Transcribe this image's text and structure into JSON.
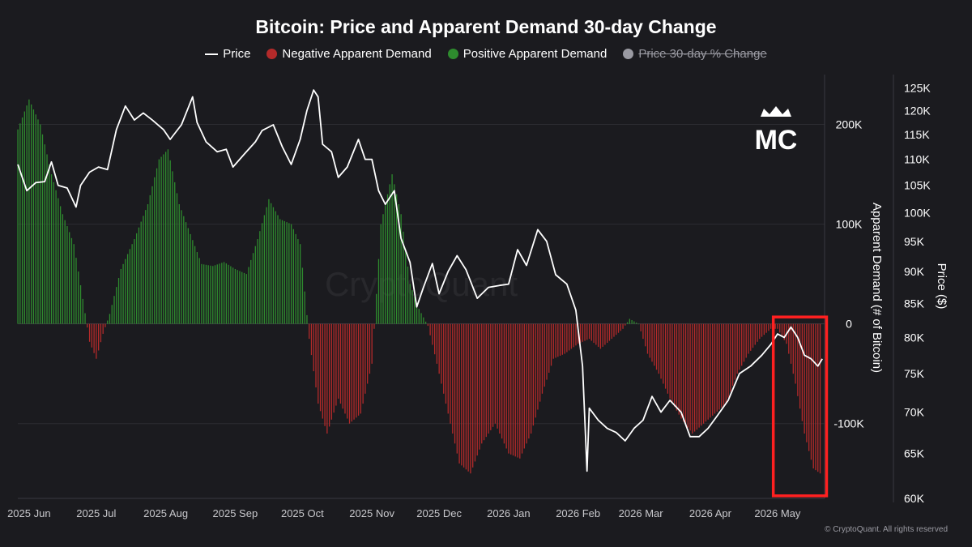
{
  "chart_data": {
    "type": "bar",
    "title": "Bitcoin: Price and Apparent Demand 30-day Change",
    "legend": [
      {
        "label": "Price",
        "kind": "line",
        "color": "#ffffff"
      },
      {
        "label": "Negative Apparent Demand",
        "kind": "dot",
        "color": "#b32a2a"
      },
      {
        "label": "Positive Apparent Demand",
        "kind": "dot",
        "color": "#2e8b2e"
      },
      {
        "label": "Price 30-day % Change",
        "kind": "dot",
        "color": "#9a9aa2",
        "hidden": true
      }
    ],
    "legend_position": "top-center",
    "watermark": "CryptoQuant",
    "x_tick_labels": [
      "2025 Jun",
      "2025 Jul",
      "2025 Aug",
      "2025 Sep",
      "2025 Oct",
      "2025 Nov",
      "2025 Dec",
      "2026 Jan",
      "2026 Feb",
      "2026 Mar",
      "2026 Apr",
      "2026 May"
    ],
    "x_range": [
      "2025-05-27",
      "2026-05-22"
    ],
    "left_axis": {
      "label": "Apparent Demand (# of Bitcoin)",
      "tick_labels": [
        "200K",
        "100K",
        "0",
        "-100K"
      ],
      "tick_values": [
        200000,
        100000,
        0,
        -100000
      ],
      "range": [
        -175000,
        250000
      ]
    },
    "right_axis": {
      "label": "Price ($)",
      "scale": "log",
      "tick_labels": [
        "125K",
        "120K",
        "115K",
        "110K",
        "105K",
        "100K",
        "95K",
        "90K",
        "85K",
        "80K",
        "75K",
        "70K",
        "65K",
        "60K"
      ],
      "tick_values": [
        125000,
        120000,
        115000,
        110000,
        105000,
        100000,
        95000,
        90000,
        85000,
        80000,
        75000,
        70000,
        65000,
        60000
      ],
      "range": [
        60000,
        128000
      ]
    },
    "grid": "horizontal",
    "series": [
      {
        "name": "Apparent Demand",
        "type": "bar",
        "positive_color": "#2e8b2e",
        "negative_color": "#b32a2a",
        "points": [
          [
            "2025-05-27",
            195000
          ],
          [
            "2025-06-01",
            225000
          ],
          [
            "2025-06-06",
            200000
          ],
          [
            "2025-06-11",
            150000
          ],
          [
            "2025-06-16",
            110000
          ],
          [
            "2025-06-21",
            80000
          ],
          [
            "2025-06-25",
            25000
          ],
          [
            "2025-06-28",
            -18000
          ],
          [
            "2025-07-01",
            -35000
          ],
          [
            "2025-07-04",
            -10000
          ],
          [
            "2025-07-07",
            10000
          ],
          [
            "2025-07-12",
            55000
          ],
          [
            "2025-07-18",
            85000
          ],
          [
            "2025-07-24",
            120000
          ],
          [
            "2025-07-29",
            165000
          ],
          [
            "2025-08-02",
            175000
          ],
          [
            "2025-08-07",
            120000
          ],
          [
            "2025-08-12",
            90000
          ],
          [
            "2025-08-17",
            60000
          ],
          [
            "2025-08-22",
            58000
          ],
          [
            "2025-08-27",
            62000
          ],
          [
            "2025-09-01",
            55000
          ],
          [
            "2025-09-06",
            50000
          ],
          [
            "2025-09-11",
            85000
          ],
          [
            "2025-09-16",
            125000
          ],
          [
            "2025-09-21",
            105000
          ],
          [
            "2025-09-26",
            100000
          ],
          [
            "2025-09-30",
            80000
          ],
          [
            "2025-10-04",
            -15000
          ],
          [
            "2025-10-08",
            -80000
          ],
          [
            "2025-10-12",
            -110000
          ],
          [
            "2025-10-17",
            -75000
          ],
          [
            "2025-10-22",
            -100000
          ],
          [
            "2025-10-27",
            -90000
          ],
          [
            "2025-11-01",
            -40000
          ],
          [
            "2025-11-05",
            100000
          ],
          [
            "2025-11-10",
            150000
          ],
          [
            "2025-11-14",
            110000
          ],
          [
            "2025-11-18",
            40000
          ],
          [
            "2025-11-22",
            15000
          ],
          [
            "2025-11-26",
            -2000
          ],
          [
            "2025-11-30",
            -40000
          ],
          [
            "2025-12-05",
            -90000
          ],
          [
            "2025-12-10",
            -140000
          ],
          [
            "2025-12-15",
            -150000
          ],
          [
            "2025-12-20",
            -120000
          ],
          [
            "2025-12-26",
            -100000
          ],
          [
            "2026-01-01",
            -130000
          ],
          [
            "2026-01-06",
            -135000
          ],
          [
            "2026-01-11",
            -110000
          ],
          [
            "2026-01-16",
            -70000
          ],
          [
            "2026-01-21",
            -35000
          ],
          [
            "2026-01-26",
            -30000
          ],
          [
            "2026-02-01",
            -20000
          ],
          [
            "2026-02-06",
            -15000
          ],
          [
            "2026-02-11",
            -25000
          ],
          [
            "2026-02-16",
            -15000
          ],
          [
            "2026-02-21",
            -5000
          ],
          [
            "2026-02-24",
            5000
          ],
          [
            "2026-02-28",
            0
          ],
          [
            "2026-03-04",
            -30000
          ],
          [
            "2026-03-09",
            -50000
          ],
          [
            "2026-03-14",
            -75000
          ],
          [
            "2026-03-19",
            -95000
          ],
          [
            "2026-03-24",
            -110000
          ],
          [
            "2026-03-29",
            -100000
          ],
          [
            "2026-04-03",
            -90000
          ],
          [
            "2026-04-08",
            -80000
          ],
          [
            "2026-04-13",
            -50000
          ],
          [
            "2026-04-18",
            -30000
          ],
          [
            "2026-04-23",
            -15000
          ],
          [
            "2026-04-28",
            -5000
          ],
          [
            "2026-05-01",
            -5000
          ],
          [
            "2026-05-05",
            -20000
          ],
          [
            "2026-05-09",
            -60000
          ],
          [
            "2026-05-13",
            -110000
          ],
          [
            "2026-05-17",
            -145000
          ],
          [
            "2026-05-20",
            -150000
          ]
        ]
      },
      {
        "name": "Price",
        "type": "line",
        "color": "#ffffff",
        "points": [
          [
            "2025-05-27",
            109000
          ],
          [
            "2025-05-31",
            104000
          ],
          [
            "2025-06-04",
            105500
          ],
          [
            "2025-06-08",
            105700
          ],
          [
            "2025-06-11",
            109500
          ],
          [
            "2025-06-14",
            105000
          ],
          [
            "2025-06-18",
            104500
          ],
          [
            "2025-06-22",
            101000
          ],
          [
            "2025-06-24",
            105000
          ],
          [
            "2025-06-28",
            107500
          ],
          [
            "2025-07-02",
            108500
          ],
          [
            "2025-07-06",
            108000
          ],
          [
            "2025-07-10",
            116000
          ],
          [
            "2025-07-14",
            121000
          ],
          [
            "2025-07-18",
            118000
          ],
          [
            "2025-07-22",
            119500
          ],
          [
            "2025-07-26",
            118000
          ],
          [
            "2025-07-31",
            116000
          ],
          [
            "2025-08-03",
            114000
          ],
          [
            "2025-08-08",
            117000
          ],
          [
            "2025-08-13",
            123000
          ],
          [
            "2025-08-15",
            117500
          ],
          [
            "2025-08-19",
            113500
          ],
          [
            "2025-08-24",
            111500
          ],
          [
            "2025-08-28",
            112000
          ],
          [
            "2025-08-31",
            108500
          ],
          [
            "2025-09-05",
            111000
          ],
          [
            "2025-09-10",
            113500
          ],
          [
            "2025-09-13",
            115800
          ],
          [
            "2025-09-18",
            117000
          ],
          [
            "2025-09-22",
            112500
          ],
          [
            "2025-09-26",
            109000
          ],
          [
            "2025-09-30",
            114000
          ],
          [
            "2025-10-03",
            120000
          ],
          [
            "2025-10-06",
            124500
          ],
          [
            "2025-10-08",
            123000
          ],
          [
            "2025-10-10",
            113000
          ],
          [
            "2025-10-14",
            111500
          ],
          [
            "2025-10-17",
            106500
          ],
          [
            "2025-10-21",
            108500
          ],
          [
            "2025-10-26",
            114000
          ],
          [
            "2025-10-29",
            110000
          ],
          [
            "2025-11-01",
            110000
          ],
          [
            "2025-11-04",
            104000
          ],
          [
            "2025-11-07",
            101500
          ],
          [
            "2025-11-11",
            104000
          ],
          [
            "2025-11-14",
            95500
          ],
          [
            "2025-11-18",
            91500
          ],
          [
            "2025-11-21",
            84500
          ],
          [
            "2025-11-24",
            87500
          ],
          [
            "2025-11-28",
            91300
          ],
          [
            "2025-12-01",
            86500
          ],
          [
            "2025-12-05",
            90000
          ],
          [
            "2025-12-09",
            92600
          ],
          [
            "2025-12-13",
            90300
          ],
          [
            "2025-12-18",
            85800
          ],
          [
            "2025-12-23",
            87500
          ],
          [
            "2025-12-28",
            87800
          ],
          [
            "2026-01-01",
            88000
          ],
          [
            "2026-01-05",
            93600
          ],
          [
            "2026-01-09",
            91000
          ],
          [
            "2026-01-14",
            97000
          ],
          [
            "2026-01-18",
            95000
          ],
          [
            "2026-01-22",
            89500
          ],
          [
            "2026-01-27",
            88000
          ],
          [
            "2026-01-31",
            84000
          ],
          [
            "2026-02-03",
            76000
          ],
          [
            "2026-02-05",
            63000
          ],
          [
            "2026-02-06",
            70500
          ],
          [
            "2026-02-10",
            69000
          ],
          [
            "2026-02-14",
            68000
          ],
          [
            "2026-02-18",
            67500
          ],
          [
            "2026-02-22",
            66500
          ],
          [
            "2026-02-26",
            68000
          ],
          [
            "2026-03-02",
            69000
          ],
          [
            "2026-03-06",
            72000
          ],
          [
            "2026-03-10",
            70000
          ],
          [
            "2026-03-14",
            71500
          ],
          [
            "2026-03-19",
            70000
          ],
          [
            "2026-03-23",
            67000
          ],
          [
            "2026-03-27",
            67000
          ],
          [
            "2026-03-31",
            68000
          ],
          [
            "2026-04-04",
            69500
          ],
          [
            "2026-04-09",
            71500
          ],
          [
            "2026-04-14",
            75000
          ],
          [
            "2026-04-19",
            76000
          ],
          [
            "2026-04-24",
            77500
          ],
          [
            "2026-04-28",
            79000
          ],
          [
            "2026-05-01",
            80500
          ],
          [
            "2026-05-04",
            80000
          ],
          [
            "2026-05-07",
            81500
          ],
          [
            "2026-05-10",
            80000
          ],
          [
            "2026-05-13",
            77500
          ],
          [
            "2026-05-16",
            77000
          ],
          [
            "2026-05-19",
            76000
          ],
          [
            "2026-05-21",
            77000
          ]
        ]
      }
    ],
    "annotations": [
      {
        "type": "highlight-box",
        "color": "#ff2020",
        "x_range": [
          "2026-05-02",
          "2026-05-20"
        ],
        "y_range": [
          -170000,
          2000
        ]
      }
    ]
  },
  "copyright": "© CryptoQuant. All rights reserved",
  "logo_text": "MC"
}
